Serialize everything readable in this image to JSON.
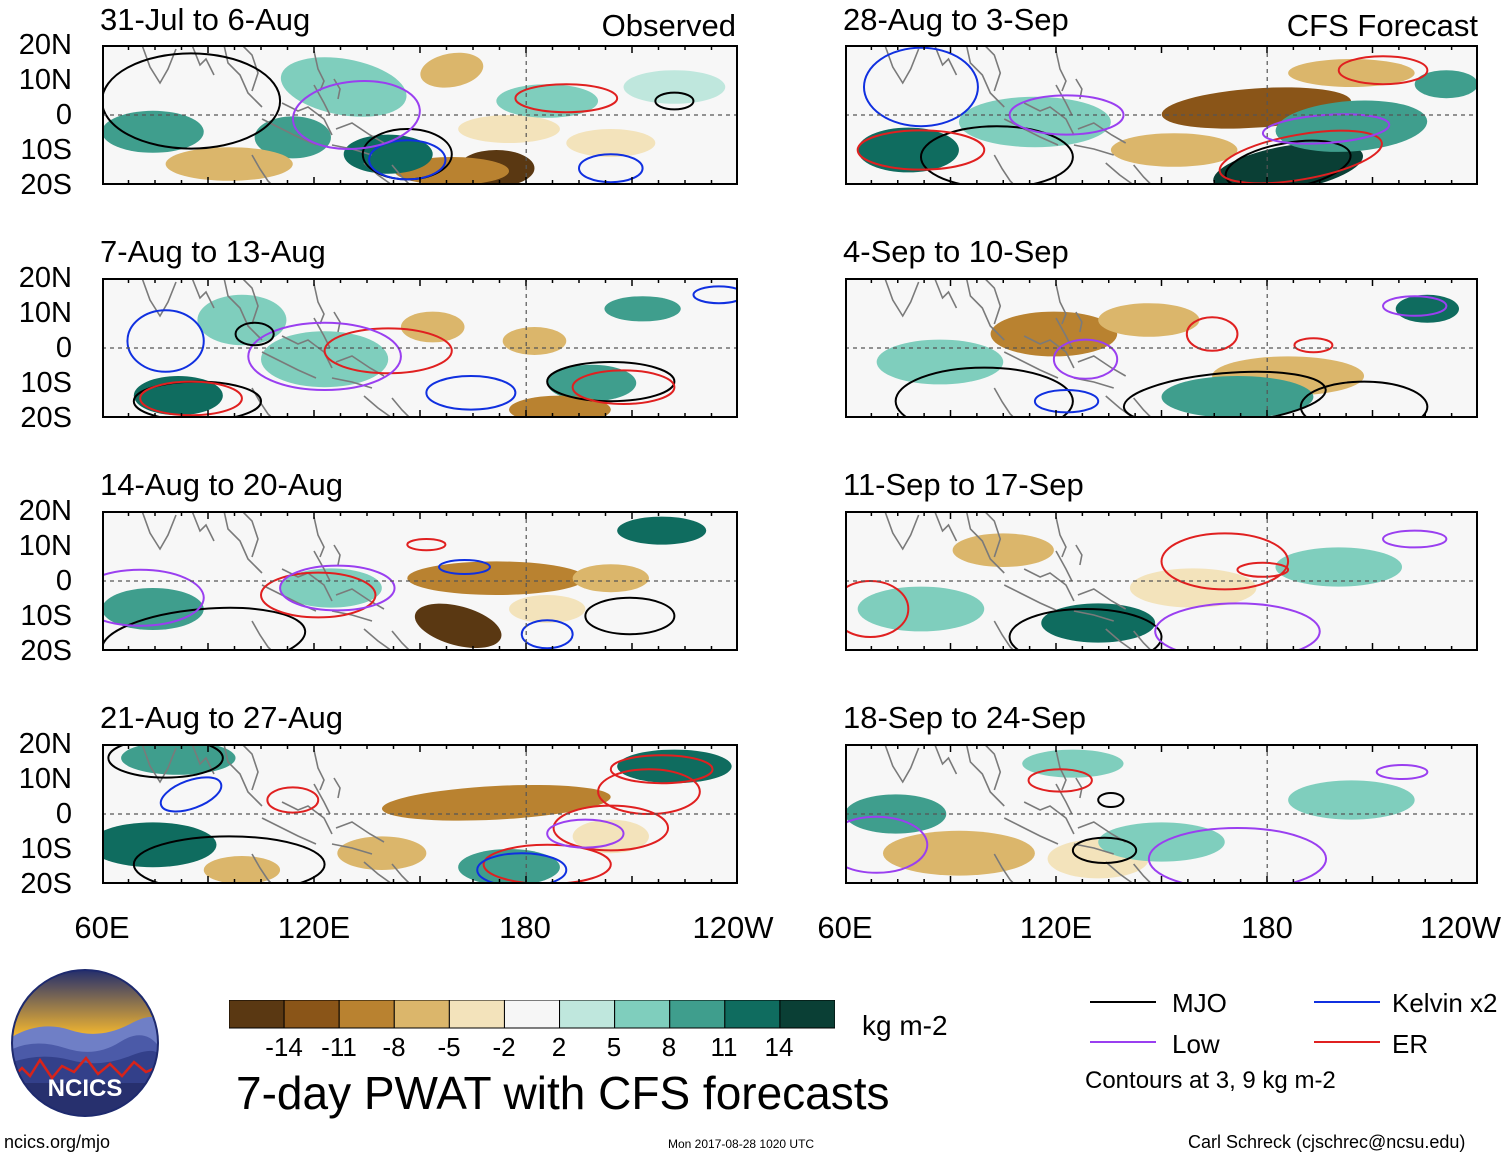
{
  "panels_left": [
    {
      "title": "31-Jul to 6-Aug",
      "tag": "Observed"
    },
    {
      "title": "7-Aug to 13-Aug",
      "tag": ""
    },
    {
      "title": "14-Aug to 20-Aug",
      "tag": ""
    },
    {
      "title": "21-Aug to 27-Aug",
      "tag": ""
    }
  ],
  "panels_right": [
    {
      "title": "28-Aug to 3-Sep",
      "tag": "CFS Forecast"
    },
    {
      "title": "4-Sep to 10-Sep",
      "tag": ""
    },
    {
      "title": "11-Sep to 17-Sep",
      "tag": ""
    },
    {
      "title": "18-Sep to 24-Sep",
      "tag": ""
    }
  ],
  "lat_labels": [
    "20N",
    "10N",
    "0",
    "10S",
    "20S"
  ],
  "lon_labels": [
    "60E",
    "120E",
    "180",
    "120W"
  ],
  "colorbar": {
    "ticks": [
      "-14",
      "-11",
      "-8",
      "-5",
      "-2",
      "2",
      "5",
      "8",
      "11",
      "14"
    ],
    "colors": [
      "#5a3812",
      "#8a5518",
      "#b98230",
      "#dbb66b",
      "#f3e3bb",
      "#f6f6f6",
      "#bfe7dd",
      "#7fcebd",
      "#3f9e8d",
      "#0f6c5f",
      "#0a3f35"
    ],
    "units": "kg m-2"
  },
  "legend": {
    "mjo": {
      "label": "MJO",
      "color": "#000000"
    },
    "kelvin": {
      "label": "Kelvin x2",
      "color": "#1030e0"
    },
    "low": {
      "label": "Low",
      "color": "#9a3ff0"
    },
    "er": {
      "label": "ER",
      "color": "#e02020"
    },
    "note": "Contours at 3, 9 kg m-2"
  },
  "main_title": "7-day PWAT with CFS forecasts",
  "logo_text": "NCICS",
  "footer": {
    "url": "ncics.org/mjo",
    "timestamp": "Mon 2017-08-28 1020 UTC",
    "author": "Carl Schreck (cjschrec@ncsu.edu)"
  }
}
